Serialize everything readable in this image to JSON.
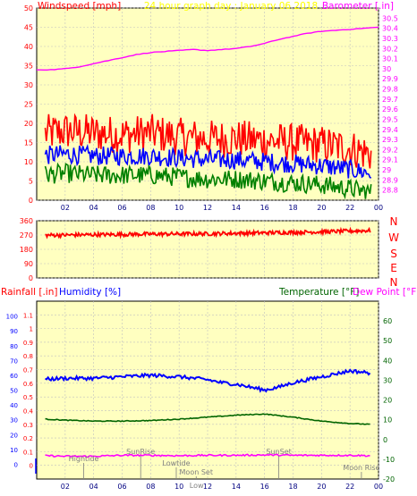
{
  "colors": {
    "plot_bg": "#ffffc0",
    "grid": "#c0c0c0",
    "wind_gust": "#ff0000",
    "wind_avg": "#0000ff",
    "wind_low": "#008000",
    "barometer": "#ff00ff",
    "direction": "#ff0000",
    "humidity": "#0000ff",
    "temperature": "#006400",
    "dewpoint": "#ff00ff",
    "rain_axis": "#0000ff",
    "title": "#ffff00",
    "event_text": "#808080"
  },
  "x_ticks": [
    "02",
    "04",
    "06",
    "08",
    "10",
    "12",
    "14",
    "16",
    "18",
    "20",
    "22",
    "00"
  ],
  "chart_data": [
    {
      "type": "line",
      "title": "24 hour graph day : January 06 2018",
      "ylabel_left": "Windspeed [mph]",
      "ylabel_right": "Barometer [.in]",
      "x_range_hours": [
        0,
        24
      ],
      "ylim_left": [
        0,
        50
      ],
      "yticks_left": [
        "0",
        "5",
        "10",
        "15",
        "20",
        "25",
        "30",
        "35",
        "40",
        "45",
        "50"
      ],
      "ylim_right": [
        28.7,
        30.6
      ],
      "yticks_right": [
        "28.8",
        "28.9",
        "29",
        "29.1",
        "29.2",
        "29.3",
        "29.4",
        "29.5",
        "29.6",
        "29.7",
        "29.8",
        "29.9",
        "30",
        "30.1",
        "30.2",
        "30.3",
        "30.4",
        "30.5"
      ],
      "series": [
        {
          "key": "gust",
          "axis": "left",
          "x": [
            0,
            2,
            4,
            6,
            8,
            10,
            12,
            14,
            16,
            18,
            20,
            22,
            23.5
          ],
          "values": [
            17,
            18,
            17.5,
            17,
            17.5,
            16.5,
            16,
            16,
            15.5,
            15,
            14.5,
            13.5,
            12
          ],
          "jitter": 5
        },
        {
          "key": "avg",
          "axis": "left",
          "x": [
            0,
            2,
            4,
            6,
            8,
            10,
            12,
            14,
            16,
            18,
            20,
            22,
            23.5
          ],
          "values": [
            11.5,
            12,
            11.5,
            11.5,
            11.5,
            11,
            10.5,
            10.5,
            10,
            9.5,
            9,
            8,
            7
          ],
          "jitter": 2.5
        },
        {
          "key": "low",
          "axis": "left",
          "x": [
            0,
            2,
            4,
            6,
            8,
            10,
            12,
            14,
            16,
            18,
            20,
            22,
            23.5
          ],
          "values": [
            6.5,
            7,
            6.5,
            6.5,
            6.5,
            6,
            5.5,
            5.5,
            5,
            4.5,
            4,
            3,
            2
          ],
          "jitter": 2.5
        },
        {
          "key": "barometer",
          "axis": "right",
          "x": [
            0,
            1,
            2,
            3,
            4,
            5,
            6,
            7,
            8,
            9,
            10,
            11,
            12,
            13,
            14,
            15,
            16,
            17,
            18,
            19,
            20,
            21,
            22,
            23,
            24
          ],
          "values": [
            29.99,
            29.99,
            30.0,
            30.02,
            30.05,
            30.08,
            30.11,
            30.14,
            30.16,
            30.17,
            30.18,
            30.19,
            30.18,
            30.19,
            30.2,
            30.22,
            30.25,
            30.29,
            30.32,
            30.35,
            30.37,
            30.38,
            30.39,
            30.4,
            30.41
          ]
        }
      ]
    },
    {
      "type": "line",
      "title": "",
      "ylim": [
        0,
        360
      ],
      "yticks": [
        "0",
        "90",
        "180",
        "270",
        "360"
      ],
      "direction_labels": [
        "N",
        "W",
        "S",
        "E",
        "N"
      ],
      "series": [
        {
          "key": "direction",
          "x": [
            0,
            4,
            8,
            12,
            16,
            20,
            24
          ],
          "values": [
            268,
            272,
            276,
            278,
            284,
            290,
            300
          ],
          "jitter": 12
        }
      ]
    },
    {
      "type": "line",
      "title": "",
      "ylabel_rain": "Rainfall [.in]",
      "ylabel_humidity": "Humidity [%]",
      "ylabel_temperature": "Temperature [°F]",
      "ylabel_dewpoint": "Dew Point [°F]",
      "ylim_rain": [
        -0.1,
        1.2
      ],
      "yticks_rain": [
        "0",
        "0.1",
        "0.2",
        "0.3",
        "0.4",
        "0.5",
        "0.6",
        "0.7",
        "0.8",
        "0.9",
        "1",
        "1.1"
      ],
      "ylim_humidity": [
        -10,
        110
      ],
      "yticks_humidity": [
        "0",
        "10",
        "20",
        "30",
        "40",
        "50",
        "60",
        "70",
        "80",
        "90",
        "100"
      ],
      "ylim_temperature": [
        -20,
        70
      ],
      "yticks_temperature": [
        "-20",
        "-10",
        "0",
        "10",
        "20",
        "30",
        "40",
        "50",
        "60"
      ],
      "events": [
        {
          "label": "Hightide",
          "hour": 3.3
        },
        {
          "label": "SunRise",
          "hour": 7.3
        },
        {
          "label": "Lowtide",
          "hour": 9.8
        },
        {
          "label": "Moon Set",
          "hour": 11.2
        },
        {
          "label": "SunSet",
          "hour": 17.0
        },
        {
          "label": "Moon Rise",
          "hour": 22.8
        }
      ],
      "low_marker": {
        "label": "Low",
        "hour": 11.6
      },
      "series": [
        {
          "key": "humidity",
          "axis": "humidity",
          "x": [
            0,
            2,
            4,
            6,
            8,
            10,
            12,
            13,
            14,
            15,
            16,
            17,
            18,
            19,
            20,
            21,
            22,
            23,
            24
          ],
          "values": [
            57,
            58,
            58,
            59,
            60,
            59,
            57,
            55,
            54,
            52,
            50,
            52,
            55,
            57,
            59,
            61,
            63,
            62,
            61
          ],
          "jitter": 1.2
        },
        {
          "key": "temperature",
          "axis": "temperature",
          "x": [
            0,
            2,
            4,
            6,
            8,
            10,
            12,
            14,
            16,
            18,
            20,
            22,
            24
          ],
          "values": [
            10.5,
            9.8,
            9.3,
            9.3,
            9.6,
            10.3,
            11.3,
            12.3,
            12.9,
            11.3,
            9.3,
            8.1,
            7.5
          ],
          "jitter": 0.2
        },
        {
          "key": "dewpoint",
          "axis": "temperature",
          "x": [
            0,
            2,
            4,
            6,
            8,
            10,
            12,
            14,
            16,
            18,
            20,
            22,
            24
          ],
          "values": [
            -8,
            -8.5,
            -8.5,
            -8,
            -8,
            -8.2,
            -8,
            -8,
            -7.8,
            -8,
            -8,
            -8,
            -8.3
          ],
          "jitter": 0.4
        },
        {
          "key": "rainfall",
          "axis": "rain",
          "x": [
            0,
            24
          ],
          "values": [
            0,
            0
          ]
        }
      ]
    }
  ]
}
